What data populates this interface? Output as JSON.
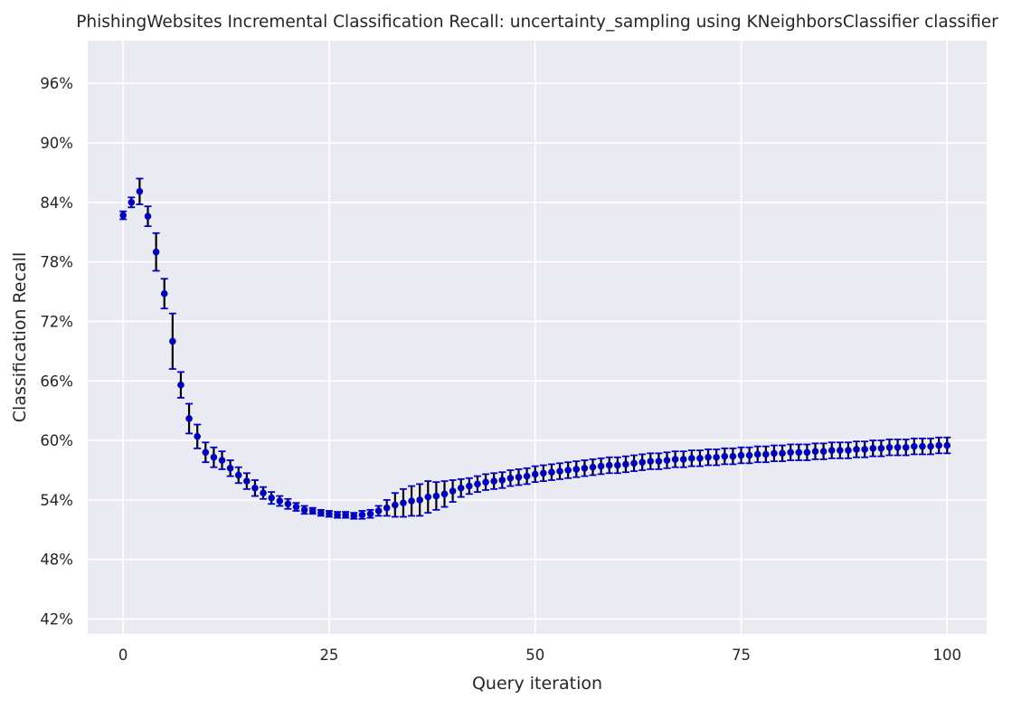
{
  "chart_data": {
    "type": "scatter",
    "title": "PhishingWebsites Incremental Classification Recall: uncertainty_sampling using KNeighborsClassifier classifier",
    "xlabel": "Query iteration",
    "ylabel": "Classification Recall",
    "xlim": [
      -4.3,
      104.8
    ],
    "ylim": [
      40.5,
      100.3
    ],
    "xticks": [
      0,
      25,
      50,
      75,
      100
    ],
    "xtick_labels": [
      "0",
      "25",
      "50",
      "75",
      "100"
    ],
    "yticks": [
      42,
      48,
      54,
      60,
      66,
      72,
      78,
      84,
      90,
      96
    ],
    "ytick_labels": [
      "42%",
      "48%",
      "54%",
      "60%",
      "66%",
      "72%",
      "78%",
      "84%",
      "90%",
      "96%"
    ],
    "grid": true,
    "marker_color": "#0000bb",
    "errorbar_color": "#000000",
    "cap_color": "#0000cc",
    "series": [
      {
        "name": "recall",
        "x": [
          0,
          1,
          2,
          3,
          4,
          5,
          6,
          7,
          8,
          9,
          10,
          11,
          12,
          13,
          14,
          15,
          16,
          17,
          18,
          19,
          20,
          21,
          22,
          23,
          24,
          25,
          26,
          27,
          28,
          29,
          30,
          31,
          32,
          33,
          34,
          35,
          36,
          37,
          38,
          39,
          40,
          41,
          42,
          43,
          44,
          45,
          46,
          47,
          48,
          49,
          50,
          51,
          52,
          53,
          54,
          55,
          56,
          57,
          58,
          59,
          60,
          61,
          62,
          63,
          64,
          65,
          66,
          67,
          68,
          69,
          70,
          71,
          72,
          73,
          74,
          75,
          76,
          77,
          78,
          79,
          80,
          81,
          82,
          83,
          84,
          85,
          86,
          87,
          88,
          89,
          90,
          91,
          92,
          93,
          94,
          95,
          96,
          97,
          98,
          99,
          100
        ],
        "values": [
          82.7,
          84.0,
          85.1,
          82.6,
          79.0,
          74.8,
          70.0,
          65.6,
          62.2,
          60.4,
          58.8,
          58.3,
          58.0,
          57.2,
          56.5,
          55.9,
          55.2,
          54.7,
          54.2,
          53.9,
          53.6,
          53.3,
          53.0,
          52.9,
          52.7,
          52.6,
          52.5,
          52.5,
          52.4,
          52.5,
          52.6,
          52.9,
          53.2,
          53.5,
          53.7,
          53.9,
          54.0,
          54.3,
          54.4,
          54.6,
          54.9,
          55.2,
          55.4,
          55.6,
          55.8,
          55.9,
          56.0,
          56.2,
          56.3,
          56.4,
          56.6,
          56.7,
          56.8,
          56.9,
          57.0,
          57.1,
          57.2,
          57.3,
          57.4,
          57.5,
          57.5,
          57.6,
          57.7,
          57.8,
          57.9,
          57.9,
          58.0,
          58.1,
          58.1,
          58.2,
          58.2,
          58.3,
          58.3,
          58.4,
          58.4,
          58.5,
          58.5,
          58.6,
          58.6,
          58.7,
          58.7,
          58.8,
          58.8,
          58.8,
          58.9,
          58.9,
          59.0,
          59.0,
          59.0,
          59.1,
          59.1,
          59.2,
          59.2,
          59.3,
          59.3,
          59.3,
          59.4,
          59.4,
          59.4,
          59.5,
          59.5
        ],
        "errors": [
          0.4,
          0.5,
          1.3,
          1.0,
          1.9,
          1.5,
          2.8,
          1.3,
          1.5,
          1.2,
          1.0,
          1.0,
          0.9,
          0.8,
          0.8,
          0.8,
          0.8,
          0.6,
          0.6,
          0.5,
          0.5,
          0.4,
          0.4,
          0.3,
          0.3,
          0.3,
          0.3,
          0.3,
          0.3,
          0.4,
          0.4,
          0.5,
          0.8,
          1.2,
          1.4,
          1.5,
          1.6,
          1.6,
          1.4,
          1.3,
          1.1,
          0.9,
          0.8,
          0.8,
          0.8,
          0.8,
          0.8,
          0.8,
          0.8,
          0.8,
          0.8,
          0.8,
          0.8,
          0.8,
          0.8,
          0.8,
          0.8,
          0.8,
          0.8,
          0.8,
          0.8,
          0.8,
          0.8,
          0.8,
          0.8,
          0.8,
          0.8,
          0.8,
          0.8,
          0.8,
          0.8,
          0.8,
          0.8,
          0.8,
          0.8,
          0.8,
          0.8,
          0.8,
          0.8,
          0.8,
          0.8,
          0.8,
          0.8,
          0.8,
          0.8,
          0.8,
          0.8,
          0.8,
          0.8,
          0.8,
          0.8,
          0.8,
          0.8,
          0.8,
          0.8,
          0.8,
          0.8,
          0.8,
          0.8,
          0.8,
          0.8
        ]
      }
    ]
  }
}
